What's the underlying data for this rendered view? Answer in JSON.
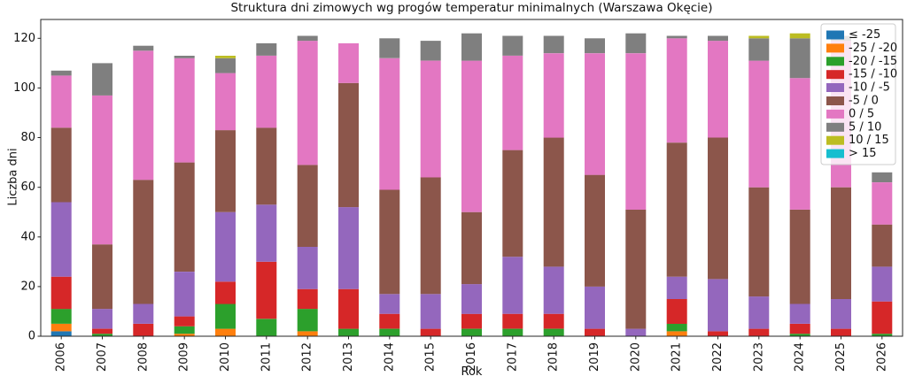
{
  "chart_data": {
    "type": "bar",
    "stacked": true,
    "title": "Struktura dni zimowych wg progów temperatur minimalnych (Warszawa Okęcie)",
    "xlabel": "Rok",
    "ylabel": "Liczba dni",
    "categories": [
      "2006",
      "2007",
      "2008",
      "2009",
      "2010",
      "2011",
      "2012",
      "2013",
      "2014",
      "2015",
      "2016",
      "2017",
      "2018",
      "2019",
      "2020",
      "2021",
      "2022",
      "2023",
      "2024",
      "2025",
      "2026"
    ],
    "yticks": [
      0,
      20,
      40,
      60,
      80,
      100,
      120
    ],
    "ylim": [
      0,
      127.6
    ],
    "grid": false,
    "legend_position": "upper right",
    "background_color": "#ffffff",
    "axis_color": "#262626",
    "text_color": "#111111",
    "legend_border_color": "#cccccc",
    "series": [
      {
        "key": "le-25",
        "name": "≤ -25",
        "color": "#1f77b4",
        "values": [
          2,
          0,
          0,
          0,
          0,
          0,
          0,
          0,
          0,
          0,
          0,
          0,
          0,
          0,
          0,
          0,
          0,
          0,
          0,
          0,
          0
        ]
      },
      {
        "key": "n25-n20",
        "name": "-25 / -20",
        "color": "#ff7f0e",
        "values": [
          3,
          0,
          0,
          1,
          3,
          0,
          2,
          0,
          0,
          0,
          0,
          0,
          0,
          0,
          0,
          2,
          0,
          0,
          0,
          0,
          0
        ]
      },
      {
        "key": "n20-n15",
        "name": "-20 / -15",
        "color": "#2ca02c",
        "values": [
          6,
          1,
          0,
          3,
          10,
          7,
          9,
          3,
          3,
          0,
          3,
          3,
          3,
          0,
          0,
          3,
          0,
          0,
          1,
          0,
          1
        ]
      },
      {
        "key": "n15-n10",
        "name": "-15 / -10",
        "color": "#d62728",
        "values": [
          13,
          2,
          5,
          4,
          9,
          23,
          8,
          16,
          6,
          3,
          6,
          6,
          6,
          3,
          0,
          10,
          2,
          3,
          4,
          3,
          13
        ]
      },
      {
        "key": "n10-n5",
        "name": "-10 / -5",
        "color": "#9467bd",
        "values": [
          30,
          8,
          8,
          18,
          28,
          23,
          17,
          33,
          8,
          14,
          12,
          23,
          19,
          17,
          3,
          9,
          21,
          13,
          8,
          12,
          14
        ]
      },
      {
        "key": "n5-0",
        "name": "-5 / 0",
        "color": "#8c564b",
        "values": [
          30,
          26,
          50,
          44,
          33,
          31,
          33,
          50,
          42,
          47,
          29,
          43,
          52,
          45,
          48,
          54,
          57,
          44,
          38,
          45,
          17
        ]
      },
      {
        "key": "0-5",
        "name": "0 / 5",
        "color": "#e377c2",
        "values": [
          21,
          60,
          52,
          42,
          23,
          29,
          50,
          16,
          53,
          47,
          61,
          38,
          34,
          49,
          63,
          42,
          39,
          51,
          53,
          59,
          17
        ]
      },
      {
        "key": "5-10",
        "name": "5 / 10",
        "color": "#7f7f7f",
        "values": [
          2,
          13,
          2,
          1,
          6,
          5,
          2,
          0,
          8,
          8,
          11,
          8,
          7,
          6,
          8,
          1,
          2,
          9,
          16,
          2,
          4
        ]
      },
      {
        "key": "10-15",
        "name": "10 / 15",
        "color": "#bcbd22",
        "values": [
          0,
          0,
          0,
          0,
          1,
          0,
          0,
          0,
          0,
          0,
          0,
          0,
          0,
          0,
          0,
          0,
          0,
          1,
          2,
          0,
          0
        ]
      },
      {
        "key": "gt-15",
        "name": "> 15",
        "color": "#17becf",
        "values": [
          0,
          0,
          0,
          0,
          0,
          0,
          0,
          0,
          0,
          0,
          0,
          0,
          0,
          0,
          0,
          0,
          0,
          0,
          0,
          0,
          0
        ]
      }
    ]
  }
}
